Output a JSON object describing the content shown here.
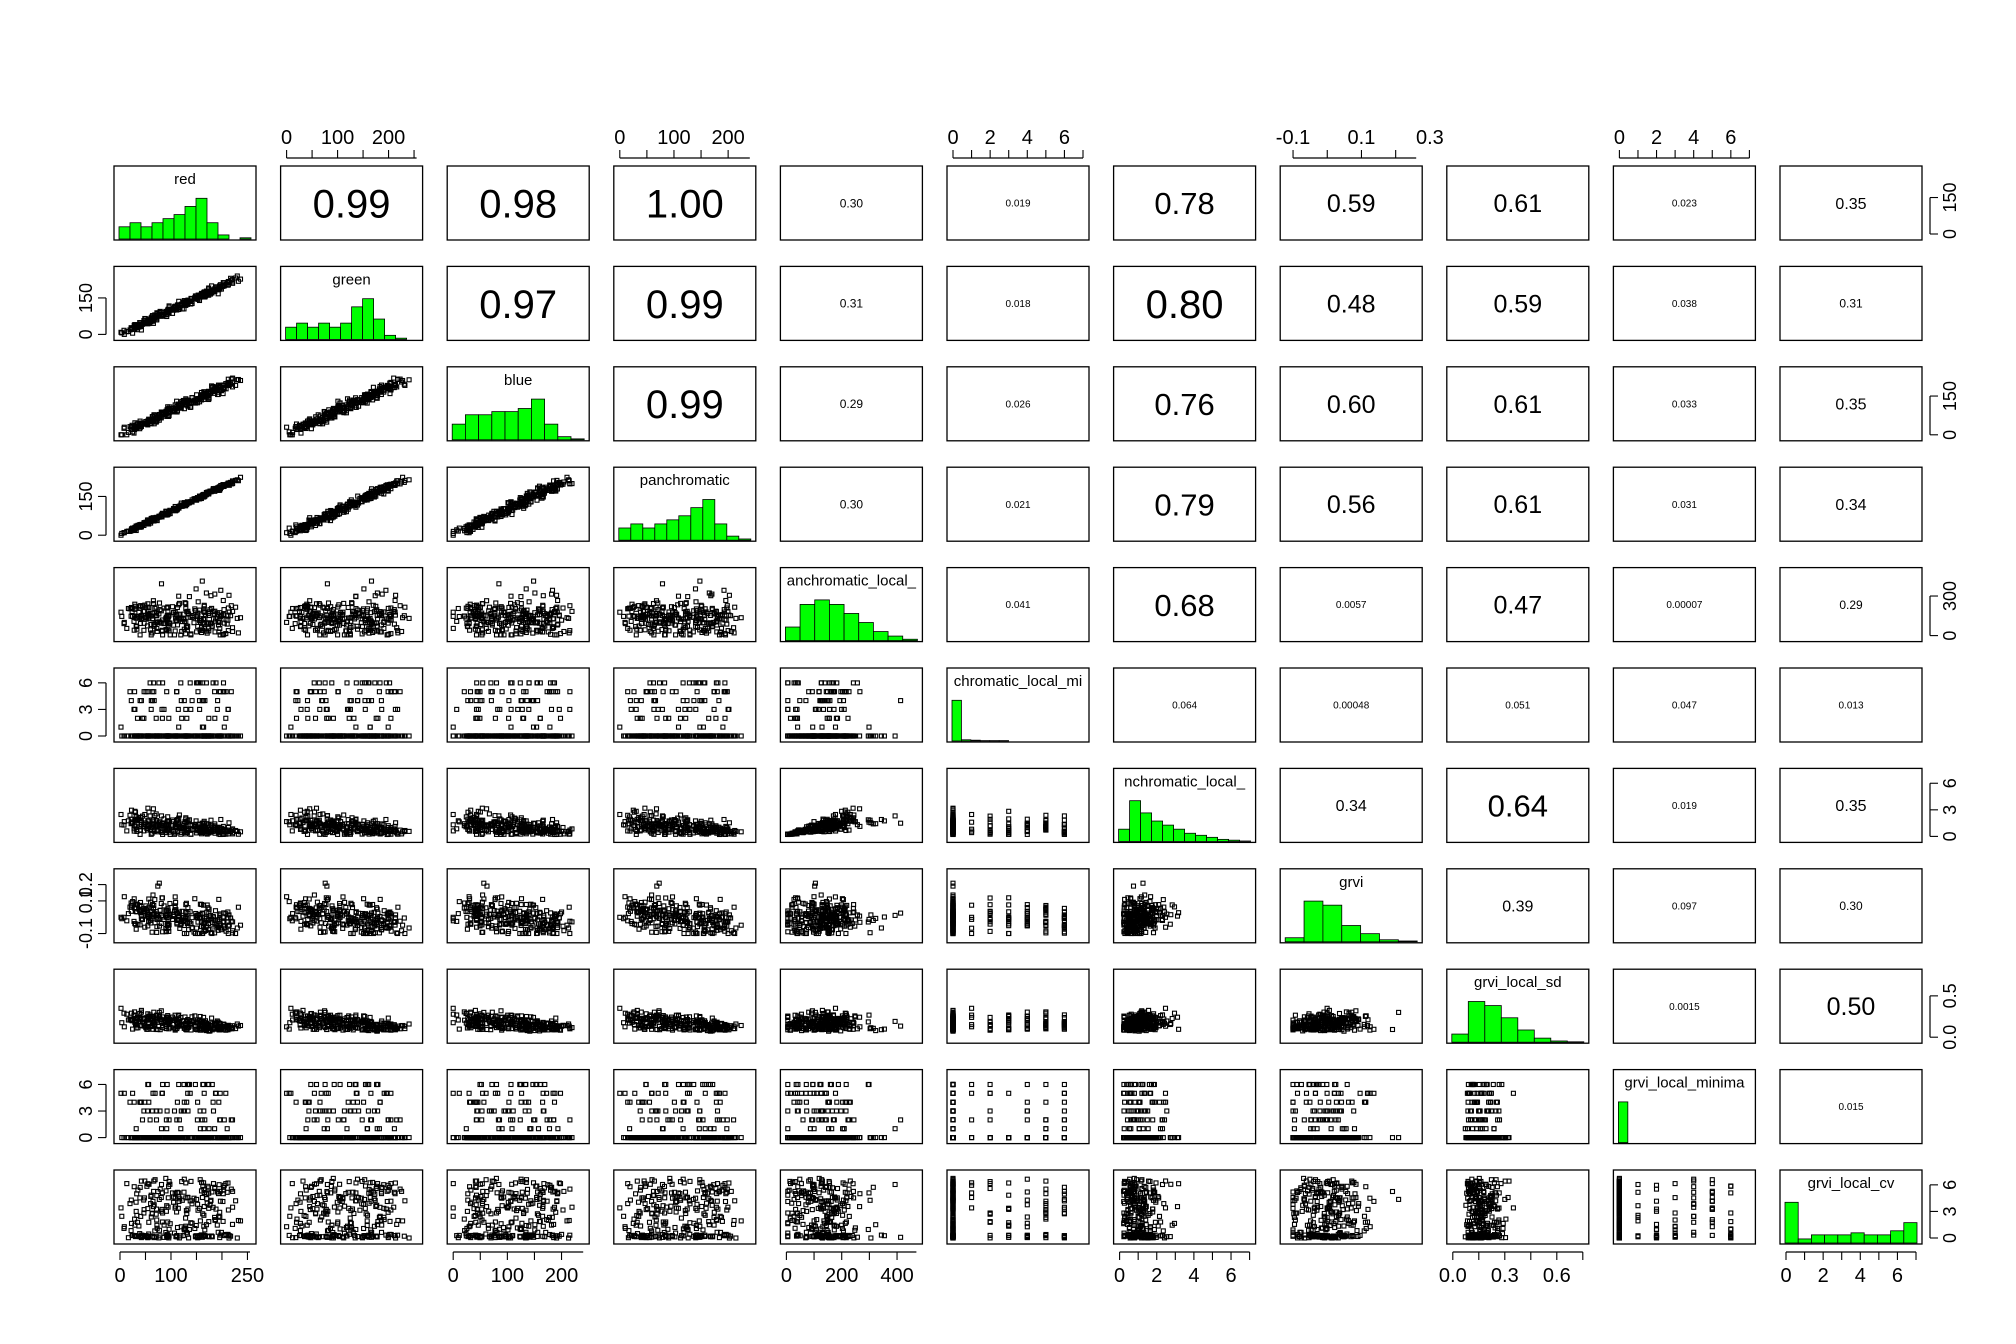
{
  "chart_data": {
    "type": "scatter",
    "subtype": "pairs-scatterplot-matrix",
    "variables": [
      "red",
      "green",
      "blue",
      "panchromatic",
      "panchromatic_local_sd",
      "panchromatic_local_minima",
      "panchromatic_local_cv",
      "grvi",
      "grvi_local_sd",
      "grvi_local_minima",
      "grvi_local_cv"
    ],
    "diagonal_labels": [
      "red",
      "green",
      "blue",
      "panchromatic",
      "anchromatic_local_",
      "chromatic_local_mi",
      "nchromatic_local_",
      "grvi",
      "grvi_local_sd",
      "grvi_local_minima",
      "grvi_local_cv"
    ],
    "ranges": [
      [
        0,
        255
      ],
      [
        0,
        255
      ],
      [
        0,
        240
      ],
      [
        0,
        240
      ],
      [
        0,
        470
      ],
      [
        0,
        7
      ],
      [
        0,
        7
      ],
      [
        -0.12,
        0.26
      ],
      [
        0,
        0.75
      ],
      [
        0,
        7
      ],
      [
        0,
        7
      ]
    ],
    "top_axis_ticks": {
      "1": [
        "0",
        "100",
        "200"
      ],
      "3": [
        "0",
        "100",
        "200"
      ],
      "5": [
        "0",
        "2",
        "4",
        "6"
      ],
      "7": [
        "-0.1",
        "0.1",
        "0.3"
      ],
      "9": [
        "0",
        "2",
        "4",
        "6"
      ]
    },
    "bottom_axis_ticks": {
      "0": [
        "0",
        "100",
        "250"
      ],
      "2": [
        "0",
        "100",
        "200"
      ],
      "4": [
        "0",
        "200",
        "400"
      ],
      "6": [
        "0",
        "2",
        "4",
        "6"
      ],
      "8": [
        "0.0",
        "0.3",
        "0.6"
      ],
      "10": [
        "0",
        "2",
        "4",
        "6"
      ]
    },
    "left_axis_ticks": {
      "1": [
        "0",
        "150"
      ],
      "3": [
        "0",
        "150"
      ],
      "5": [
        "0",
        "3",
        "6"
      ],
      "7": [
        "-0.1",
        "0.1",
        "0.2"
      ],
      "9": [
        "0",
        "3",
        "6"
      ]
    },
    "right_axis_ticks": {
      "0": [
        "0",
        "150"
      ],
      "2": [
        "0",
        "150"
      ],
      "4": [
        "0",
        "300"
      ],
      "6": [
        "0",
        "3",
        "6"
      ],
      "8": [
        "0.0",
        "0.5"
      ],
      "10": [
        "0",
        "3",
        "6"
      ]
    },
    "correlations": [
      [
        "red",
        "green",
        "0.99"
      ],
      [
        "red",
        "blue",
        "0.98"
      ],
      [
        "red",
        "panchromatic",
        "1.00"
      ],
      [
        "red",
        "panchromatic_local_sd",
        "0.30"
      ],
      [
        "red",
        "panchromatic_local_minima",
        "0.019"
      ],
      [
        "red",
        "panchromatic_local_cv",
        "0.78"
      ],
      [
        "red",
        "grvi",
        "0.59"
      ],
      [
        "red",
        "grvi_local_sd",
        "0.61"
      ],
      [
        "red",
        "grvi_local_minima",
        "0.023"
      ],
      [
        "red",
        "grvi_local_cv",
        "0.35"
      ],
      [
        "green",
        "blue",
        "0.97"
      ],
      [
        "green",
        "panchromatic",
        "0.99"
      ],
      [
        "green",
        "panchromatic_local_sd",
        "0.31"
      ],
      [
        "green",
        "panchromatic_local_minima",
        "0.018"
      ],
      [
        "green",
        "panchromatic_local_cv",
        "0.80"
      ],
      [
        "green",
        "grvi",
        "0.48"
      ],
      [
        "green",
        "grvi_local_sd",
        "0.59"
      ],
      [
        "green",
        "grvi_local_minima",
        "0.038"
      ],
      [
        "green",
        "grvi_local_cv",
        "0.31"
      ],
      [
        "blue",
        "panchromatic",
        "0.99"
      ],
      [
        "blue",
        "panchromatic_local_sd",
        "0.29"
      ],
      [
        "blue",
        "panchromatic_local_minima",
        "0.026"
      ],
      [
        "blue",
        "panchromatic_local_cv",
        "0.76"
      ],
      [
        "blue",
        "grvi",
        "0.60"
      ],
      [
        "blue",
        "grvi_local_sd",
        "0.61"
      ],
      [
        "blue",
        "grvi_local_minima",
        "0.033"
      ],
      [
        "blue",
        "grvi_local_cv",
        "0.35"
      ],
      [
        "panchromatic",
        "panchromatic_local_sd",
        "0.30"
      ],
      [
        "panchromatic",
        "panchromatic_local_minima",
        "0.021"
      ],
      [
        "panchromatic",
        "panchromatic_local_cv",
        "0.79"
      ],
      [
        "panchromatic",
        "grvi",
        "0.56"
      ],
      [
        "panchromatic",
        "grvi_local_sd",
        "0.61"
      ],
      [
        "panchromatic",
        "grvi_local_minima",
        "0.031"
      ],
      [
        "panchromatic",
        "grvi_local_cv",
        "0.34"
      ],
      [
        "panchromatic_local_sd",
        "panchromatic_local_minima",
        "0.041"
      ],
      [
        "panchromatic_local_sd",
        "panchromatic_local_cv",
        "0.68"
      ],
      [
        "panchromatic_local_sd",
        "grvi",
        "0.0057"
      ],
      [
        "panchromatic_local_sd",
        "grvi_local_sd",
        "0.47"
      ],
      [
        "panchromatic_local_sd",
        "grvi_local_minima",
        "0.00007"
      ],
      [
        "panchromatic_local_sd",
        "grvi_local_cv",
        "0.29"
      ],
      [
        "panchromatic_local_minima",
        "panchromatic_local_cv",
        "0.064"
      ],
      [
        "panchromatic_local_minima",
        "grvi",
        "0.00048"
      ],
      [
        "panchromatic_local_minima",
        "grvi_local_sd",
        "0.051"
      ],
      [
        "panchromatic_local_minima",
        "grvi_local_minima",
        "0.047"
      ],
      [
        "panchromatic_local_minima",
        "grvi_local_cv",
        "0.013"
      ],
      [
        "panchromatic_local_cv",
        "grvi",
        "0.34"
      ],
      [
        "panchromatic_local_cv",
        "grvi_local_sd",
        "0.64"
      ],
      [
        "panchromatic_local_cv",
        "grvi_local_minima",
        "0.019"
      ],
      [
        "panchromatic_local_cv",
        "grvi_local_cv",
        "0.35"
      ],
      [
        "grvi",
        "grvi_local_sd",
        "0.39"
      ],
      [
        "grvi",
        "grvi_local_minima",
        "0.097"
      ],
      [
        "grvi",
        "grvi_local_cv",
        "0.30"
      ],
      [
        "grvi_local_sd",
        "grvi_local_minima",
        "0.0015"
      ],
      [
        "grvi_local_sd",
        "grvi_local_cv",
        "0.50"
      ],
      [
        "grvi_local_minima",
        "grvi_local_cv",
        "0.015"
      ]
    ],
    "histograms": {
      "red": [
        3,
        4,
        3,
        4,
        5,
        6,
        8,
        10,
        4,
        1,
        0,
        0.3
      ],
      "green": [
        3,
        4,
        3,
        4,
        3,
        4,
        8,
        10,
        5,
        1,
        0.3,
        0
      ],
      "blue": [
        5,
        8,
        8,
        9,
        9,
        10,
        13,
        5,
        1,
        0.3
      ],
      "panchromatic": [
        3,
        4,
        3,
        4,
        5,
        6,
        8,
        10,
        4,
        1,
        0.3
      ],
      "panchromatic_local_sd": [
        3,
        8,
        9,
        8,
        6,
        4,
        2,
        1,
        0.3
      ],
      "panchromatic_local_minima": [
        10,
        0.3,
        0.2,
        0.1,
        0.1,
        0.1,
        0,
        0,
        0,
        0,
        0,
        0,
        0,
        0
      ],
      "panchromatic_local_cv": [
        3,
        10,
        7,
        5,
        4,
        3,
        2,
        1.5,
        1,
        0.5,
        0.3,
        0.1
      ],
      "grvi": [
        1,
        10,
        9,
        4,
        2,
        0.5,
        0.2
      ],
      "grvi_local_sd": [
        2,
        10,
        9,
        6,
        3,
        1,
        0.3,
        0.1
      ],
      "grvi_local_minima": [
        10,
        0,
        0,
        0,
        0,
        0,
        0,
        0,
        0,
        0,
        0,
        0,
        0,
        0
      ],
      "grvi_local_cv": [
        10,
        1,
        2,
        2,
        2,
        2.5,
        2,
        2,
        3,
        5
      ]
    },
    "colors": {
      "histogram_fill": "#00ff00",
      "points": "#000000",
      "frame": "#000000"
    },
    "grid": false
  }
}
